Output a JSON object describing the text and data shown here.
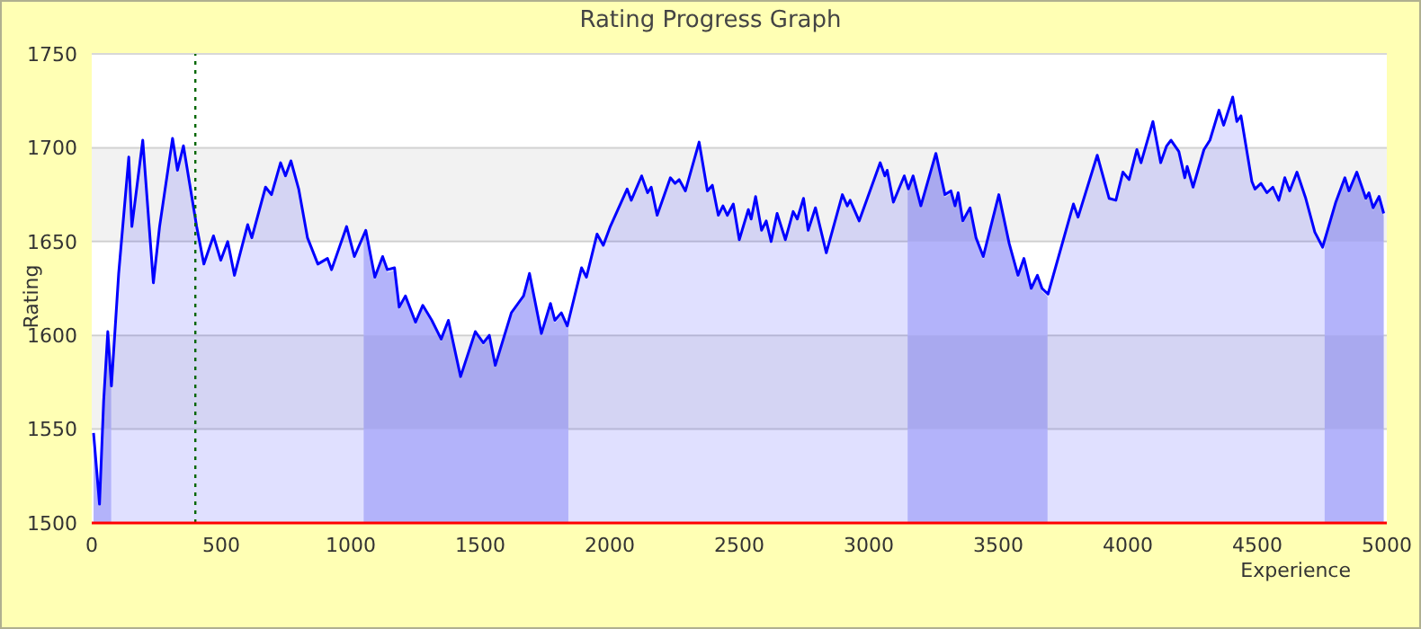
{
  "chart_data": {
    "type": "area",
    "title": "Rating Progress Graph",
    "xlabel": "Experience",
    "ylabel": "Rating",
    "x": [
      7,
      30,
      46,
      62,
      76,
      104,
      143,
      155,
      197,
      238,
      262,
      312,
      331,
      354,
      405,
      433,
      470,
      498,
      525,
      551,
      602,
      618,
      671,
      694,
      729,
      748,
      769,
      799,
      833,
      873,
      910,
      926,
      984,
      1014,
      1058,
      1093,
      1123,
      1141,
      1169,
      1187,
      1211,
      1250,
      1278,
      1313,
      1349,
      1377,
      1424,
      1481,
      1512,
      1535,
      1558,
      1620,
      1667,
      1690,
      1736,
      1771,
      1788,
      1813,
      1836,
      1891,
      1910,
      1951,
      1975,
      2002,
      2067,
      2083,
      2123,
      2146,
      2160,
      2183,
      2234,
      2252,
      2268,
      2292,
      2345,
      2377,
      2396,
      2419,
      2437,
      2454,
      2477,
      2500,
      2535,
      2546,
      2563,
      2586,
      2604,
      2623,
      2646,
      2678,
      2708,
      2724,
      2748,
      2766,
      2794,
      2836,
      2898,
      2917,
      2928,
      2947,
      2963,
      3044,
      3062,
      3071,
      3095,
      3137,
      3153,
      3171,
      3201,
      3259,
      3294,
      3317,
      3333,
      3345,
      3363,
      3391,
      3414,
      3442,
      3502,
      3542,
      3576,
      3599,
      3627,
      3651,
      3669,
      3692,
      3790,
      3808,
      3882,
      3928,
      3954,
      3981,
      4005,
      4035,
      4051,
      4097,
      4127,
      4150,
      4167,
      4197,
      4220,
      4229,
      4252,
      4294,
      4317,
      4352,
      4370,
      4405,
      4421,
      4437,
      4479,
      4491,
      4514,
      4537,
      4560,
      4583,
      4606,
      4625,
      4653,
      4687,
      4722,
      4752,
      4803,
      4838,
      4854,
      4884,
      4919,
      4931,
      4947,
      4970,
      4988
    ],
    "series": [
      {
        "color": "#0000ff",
        "values": [
          1548,
          1510,
          1565,
          1602,
          1573,
          1633,
          1695,
          1658,
          1704,
          1628,
          1658,
          1705,
          1688,
          1701,
          1658,
          1638,
          1653,
          1640,
          1650,
          1632,
          1659,
          1652,
          1679,
          1675,
          1692,
          1685,
          1693,
          1678,
          1652,
          1638,
          1641,
          1635,
          1658,
          1642,
          1656,
          1631,
          1642,
          1635,
          1636,
          1615,
          1621,
          1607,
          1616,
          1608,
          1598,
          1608,
          1578,
          1602,
          1596,
          1600,
          1584,
          1612,
          1621,
          1633,
          1601,
          1617,
          1608,
          1612,
          1605,
          1636,
          1631,
          1654,
          1648,
          1658,
          1678,
          1672,
          1685,
          1676,
          1679,
          1664,
          1684,
          1681,
          1683,
          1677,
          1703,
          1677,
          1680,
          1664,
          1669,
          1664,
          1670,
          1651,
          1667,
          1662,
          1674,
          1656,
          1661,
          1650,
          1665,
          1651,
          1666,
          1662,
          1673,
          1656,
          1668,
          1644,
          1675,
          1669,
          1672,
          1666,
          1661,
          1692,
          1685,
          1688,
          1671,
          1685,
          1678,
          1685,
          1669,
          1697,
          1675,
          1677,
          1669,
          1676,
          1661,
          1668,
          1652,
          1642,
          1675,
          1649,
          1632,
          1641,
          1625,
          1632,
          1625,
          1622,
          1670,
          1663,
          1696,
          1673,
          1672,
          1687,
          1683,
          1699,
          1692,
          1714,
          1692,
          1701,
          1704,
          1698,
          1684,
          1690,
          1679,
          1699,
          1704,
          1720,
          1712,
          1727,
          1714,
          1717,
          1682,
          1678,
          1681,
          1676,
          1679,
          1672,
          1684,
          1677,
          1687,
          1673,
          1655,
          1647,
          1671,
          1684,
          1677,
          1687,
          1673,
          1676,
          1668,
          1674,
          1665
        ]
      }
    ],
    "xlim": [
      0,
      5000
    ],
    "xticks": [
      0,
      500,
      1000,
      1500,
      2000,
      2500,
      3000,
      3500,
      4000,
      4500,
      5000
    ],
    "ylim": [
      1500,
      1750
    ],
    "yticks": [
      1500,
      1550,
      1600,
      1650,
      1700,
      1750
    ],
    "grid": "y",
    "legend": false,
    "bands": [
      {
        "axis": "y",
        "from": 1550,
        "to": 1600,
        "color": "#f2f2f2"
      },
      {
        "axis": "y",
        "from": 1650,
        "to": 1700,
        "color": "#f2f2f2"
      },
      {
        "axis": "x",
        "from": 0,
        "to": 75,
        "color": "#ccccfa"
      },
      {
        "axis": "x",
        "from": 1050,
        "to": 1840,
        "color": "#ccccfa"
      },
      {
        "axis": "x",
        "from": 3150,
        "to": 3690,
        "color": "#ccccfa"
      },
      {
        "axis": "x",
        "from": 4760,
        "to": 5000,
        "color": "#ccccfa"
      }
    ],
    "ref_lines": [
      {
        "axis": "x",
        "value": 400,
        "color": "#006600",
        "line_style": "dotted"
      }
    ]
  }
}
